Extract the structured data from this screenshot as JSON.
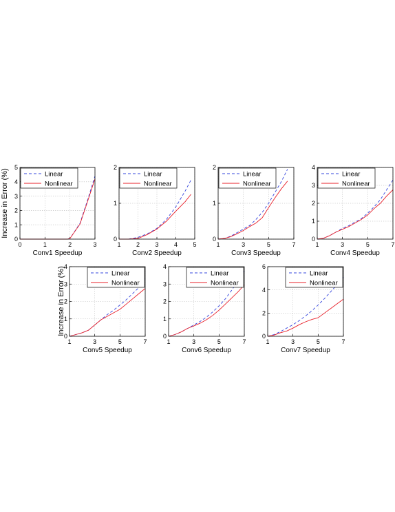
{
  "figure": {
    "ylabel": "Increase in Error (%)",
    "legend": [
      "Linear",
      "Nonlinear"
    ],
    "colors": {
      "linear": "#3344dd",
      "nonlinear": "#e8202a"
    }
  },
  "chart_data": [
    {
      "type": "line",
      "title": "",
      "xlabel": "Conv1 Speedup",
      "ylabel": "Increase in Error (%)",
      "xlim": [
        0,
        3
      ],
      "ylim": [
        0,
        5
      ],
      "xticks": [
        0,
        1,
        2,
        3
      ],
      "yticks": [
        0,
        1,
        2,
        3,
        4,
        5
      ],
      "grid": true,
      "legend_position": "top-left",
      "series": [
        {
          "name": "Linear",
          "style": "dashed",
          "x": [
            0,
            1,
            1.9,
            2,
            2.4,
            2.7,
            3
          ],
          "y": [
            0,
            0,
            0,
            0.05,
            1.1,
            2.7,
            4.4
          ]
        },
        {
          "name": "Nonlinear",
          "style": "solid",
          "x": [
            0,
            1,
            1.9,
            2,
            2.4,
            2.7,
            3
          ],
          "y": [
            0,
            0,
            0,
            0.05,
            1.05,
            2.6,
            4.2
          ]
        }
      ]
    },
    {
      "type": "line",
      "title": "",
      "xlabel": "Conv2 Speedup",
      "ylabel": "",
      "xlim": [
        1,
        5
      ],
      "ylim": [
        0,
        2
      ],
      "xticks": [
        1,
        2,
        3,
        4,
        5
      ],
      "yticks": [
        0,
        1,
        2
      ],
      "grid": true,
      "legend_position": "top-left",
      "series": [
        {
          "name": "Linear",
          "style": "dashed",
          "x": [
            1,
            1.5,
            2,
            2.5,
            3,
            3.5,
            4,
            4.5,
            4.8
          ],
          "y": [
            0,
            0,
            0.05,
            0.15,
            0.3,
            0.55,
            0.9,
            1.35,
            1.65
          ]
        },
        {
          "name": "Nonlinear",
          "style": "solid",
          "x": [
            1,
            1.5,
            2,
            2.5,
            3,
            3.5,
            4,
            4.5,
            4.8
          ],
          "y": [
            0,
            0,
            0.02,
            0.13,
            0.28,
            0.5,
            0.78,
            1.05,
            1.25
          ]
        }
      ]
    },
    {
      "type": "line",
      "title": "",
      "xlabel": "Conv3 Speedup",
      "ylabel": "",
      "xlim": [
        1,
        7
      ],
      "ylim": [
        0,
        2
      ],
      "xticks": [
        1,
        3,
        5,
        7
      ],
      "yticks": [
        0,
        1,
        2
      ],
      "grid": true,
      "legend_position": "top-left",
      "series": [
        {
          "name": "Linear",
          "style": "dashed",
          "x": [
            1,
            1.5,
            2,
            2.5,
            3,
            3.5,
            4,
            4.5,
            5,
            5.5,
            6,
            6.5
          ],
          "y": [
            0,
            0.02,
            0.08,
            0.18,
            0.28,
            0.38,
            0.55,
            0.75,
            1.0,
            1.3,
            1.6,
            1.95
          ]
        },
        {
          "name": "Nonlinear",
          "style": "solid",
          "x": [
            1,
            1.5,
            2,
            2.5,
            3,
            3.5,
            4,
            4.5,
            5,
            5.5,
            6,
            6.5
          ],
          "y": [
            0,
            0.02,
            0.07,
            0.15,
            0.24,
            0.35,
            0.45,
            0.6,
            0.88,
            1.15,
            1.4,
            1.62
          ]
        }
      ]
    },
    {
      "type": "line",
      "title": "",
      "xlabel": "Conv4 Speedup",
      "ylabel": "",
      "xlim": [
        1,
        7
      ],
      "ylim": [
        0,
        4
      ],
      "xticks": [
        1,
        3,
        5,
        7
      ],
      "yticks": [
        0,
        1,
        2,
        3,
        4
      ],
      "grid": true,
      "legend_position": "top-left",
      "series": [
        {
          "name": "Linear",
          "style": "dashed",
          "x": [
            1,
            1.5,
            2,
            2.5,
            3,
            3.5,
            4,
            4.5,
            5,
            5.5,
            6,
            6.5,
            7
          ],
          "y": [
            0,
            0.05,
            0.2,
            0.4,
            0.6,
            0.75,
            0.95,
            1.15,
            1.45,
            1.8,
            2.2,
            2.75,
            3.3
          ]
        },
        {
          "name": "Nonlinear",
          "style": "solid",
          "x": [
            1,
            1.5,
            2,
            2.5,
            3,
            3.5,
            4,
            4.5,
            5,
            5.5,
            6,
            6.5,
            7
          ],
          "y": [
            0,
            0.05,
            0.2,
            0.4,
            0.55,
            0.7,
            0.9,
            1.1,
            1.35,
            1.7,
            2.0,
            2.4,
            2.75
          ]
        }
      ]
    },
    {
      "type": "line",
      "title": "",
      "xlabel": "Conv5 Speedup",
      "ylabel": "Increase in Error (%)",
      "xlim": [
        1,
        7
      ],
      "ylim": [
        0,
        4
      ],
      "xticks": [
        1,
        3,
        5,
        7
      ],
      "yticks": [
        0,
        1,
        2,
        3,
        4
      ],
      "grid": true,
      "legend_position": "top-right",
      "series": [
        {
          "name": "Linear",
          "style": "dashed",
          "x": [
            1,
            1.5,
            2,
            2.5,
            3,
            3.5,
            4,
            4.5,
            5,
            5.5,
            6,
            6.5,
            7
          ],
          "y": [
            0,
            0.1,
            0.2,
            0.35,
            0.65,
            0.95,
            1.25,
            1.5,
            1.8,
            2.1,
            2.45,
            2.8,
            3.3
          ]
        },
        {
          "name": "Nonlinear",
          "style": "solid",
          "x": [
            1,
            1.5,
            2,
            2.5,
            3,
            3.5,
            4,
            4.5,
            5,
            5.5,
            6,
            6.5,
            7
          ],
          "y": [
            0,
            0.1,
            0.2,
            0.35,
            0.65,
            0.95,
            1.15,
            1.35,
            1.55,
            1.85,
            2.15,
            2.45,
            2.75
          ]
        }
      ]
    },
    {
      "type": "line",
      "title": "",
      "xlabel": "Conv6 Speedup",
      "ylabel": "",
      "xlim": [
        1,
        7
      ],
      "ylim": [
        0,
        4
      ],
      "xticks": [
        1,
        3,
        5,
        7
      ],
      "yticks": [
        0,
        1,
        2,
        3,
        4
      ],
      "grid": true,
      "legend_position": "top-right",
      "series": [
        {
          "name": "Linear",
          "style": "dashed",
          "x": [
            1,
            1.5,
            2,
            2.5,
            3,
            3.5,
            4,
            4.5,
            5,
            5.5,
            6,
            6.5,
            7
          ],
          "y": [
            0,
            0.1,
            0.25,
            0.45,
            0.65,
            0.85,
            1.1,
            1.4,
            1.75,
            2.15,
            2.65,
            3.15,
            3.75
          ]
        },
        {
          "name": "Nonlinear",
          "style": "solid",
          "x": [
            1,
            1.5,
            2,
            2.5,
            3,
            3.5,
            4,
            4.5,
            5,
            5.5,
            6,
            6.5,
            7
          ],
          "y": [
            0,
            0.1,
            0.25,
            0.45,
            0.6,
            0.75,
            0.95,
            1.2,
            1.5,
            1.85,
            2.2,
            2.55,
            2.95
          ]
        }
      ]
    },
    {
      "type": "line",
      "title": "",
      "xlabel": "Conv7 Speedup",
      "ylabel": "",
      "xlim": [
        1,
        7
      ],
      "ylim": [
        0,
        6
      ],
      "xticks": [
        1,
        3,
        5,
        7
      ],
      "yticks": [
        0,
        2,
        4,
        6
      ],
      "grid": true,
      "legend_position": "top-right",
      "series": [
        {
          "name": "Linear",
          "style": "dashed",
          "x": [
            1,
            1.5,
            2,
            2.5,
            3,
            3.5,
            4,
            4.5,
            5,
            5.5,
            6,
            6.5,
            7
          ],
          "y": [
            0,
            0.15,
            0.4,
            0.7,
            1.0,
            1.35,
            1.75,
            2.2,
            2.7,
            3.25,
            3.85,
            4.45,
            5.1
          ]
        },
        {
          "name": "Nonlinear",
          "style": "solid",
          "x": [
            1,
            1.5,
            2,
            2.5,
            3,
            3.5,
            4,
            4.5,
            5,
            5.5,
            6,
            6.5,
            7
          ],
          "y": [
            0,
            0.1,
            0.3,
            0.45,
            0.7,
            1.0,
            1.25,
            1.45,
            1.6,
            2.0,
            2.4,
            2.8,
            3.2
          ]
        }
      ]
    }
  ]
}
